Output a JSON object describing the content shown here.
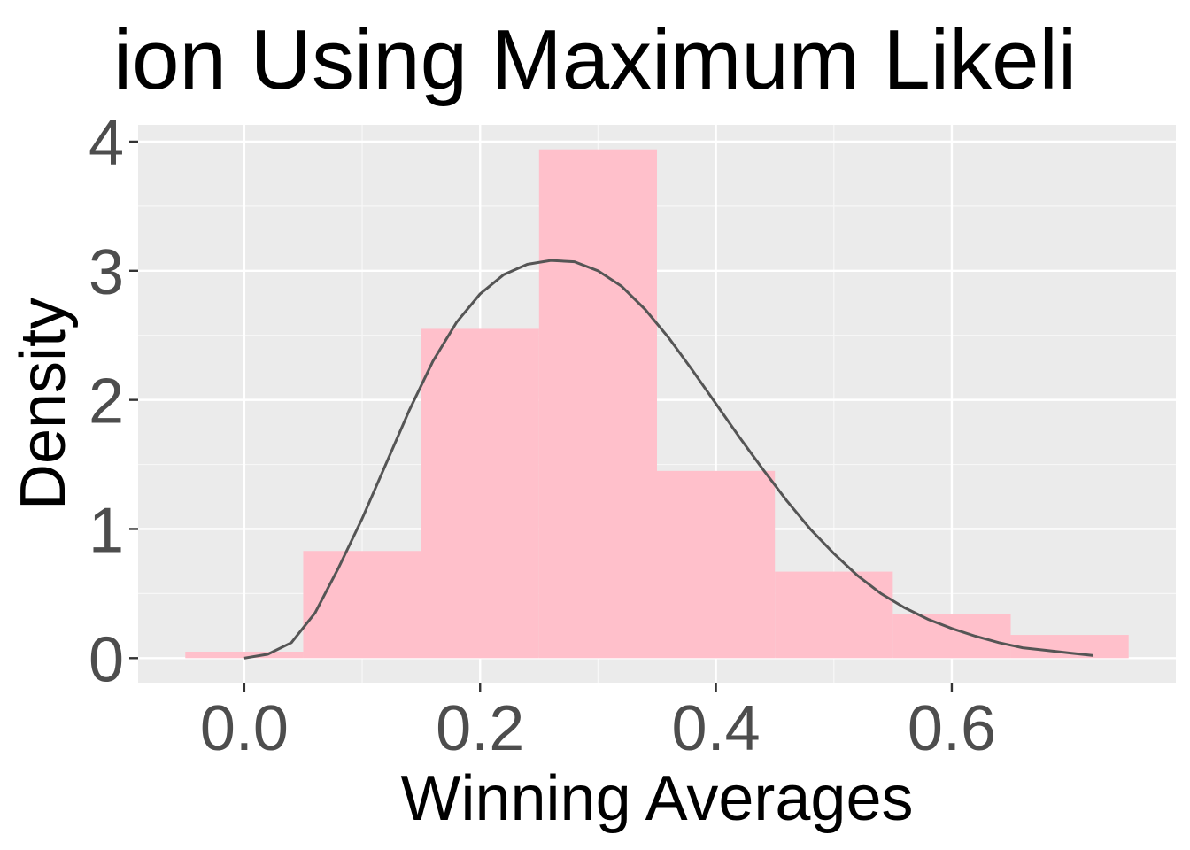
{
  "chart_data": {
    "type": "bar",
    "title": "ion Using Maximum Likeli",
    "xlabel": "Winning Averages",
    "ylabel": "Density",
    "xlim": [
      -0.09,
      0.79
    ],
    "ylim": [
      -0.19,
      4.13
    ],
    "x_ticks": [
      0.0,
      0.2,
      0.4,
      0.6
    ],
    "x_tick_labels": [
      "0.0",
      "0.2",
      "0.4",
      "0.6"
    ],
    "y_ticks": [
      0,
      1,
      2,
      3,
      4
    ],
    "y_tick_labels": [
      "0",
      "1",
      "2",
      "3",
      "4"
    ],
    "grid": true,
    "bins": [
      {
        "x0": -0.05,
        "x1": 0.05,
        "density": 0.05
      },
      {
        "x0": 0.05,
        "x1": 0.15,
        "density": 0.83
      },
      {
        "x0": 0.15,
        "x1": 0.25,
        "density": 2.55
      },
      {
        "x0": 0.25,
        "x1": 0.35,
        "density": 3.94
      },
      {
        "x0": 0.35,
        "x1": 0.45,
        "density": 1.45
      },
      {
        "x0": 0.45,
        "x1": 0.55,
        "density": 0.67
      },
      {
        "x0": 0.55,
        "x1": 0.65,
        "density": 0.34
      },
      {
        "x0": 0.65,
        "x1": 0.75,
        "density": 0.18
      }
    ],
    "density_curve": {
      "x": [
        0.0,
        0.02,
        0.04,
        0.06,
        0.08,
        0.1,
        0.12,
        0.14,
        0.16,
        0.18,
        0.2,
        0.22,
        0.24,
        0.26,
        0.28,
        0.3,
        0.32,
        0.34,
        0.36,
        0.38,
        0.4,
        0.42,
        0.44,
        0.46,
        0.48,
        0.5,
        0.52,
        0.54,
        0.56,
        0.58,
        0.6,
        0.62,
        0.64,
        0.66,
        0.68,
        0.7,
        0.72
      ],
      "y": [
        0.0,
        0.03,
        0.12,
        0.35,
        0.7,
        1.08,
        1.5,
        1.92,
        2.3,
        2.6,
        2.82,
        2.97,
        3.05,
        3.08,
        3.07,
        3.0,
        2.88,
        2.7,
        2.48,
        2.23,
        1.97,
        1.71,
        1.46,
        1.22,
        1.0,
        0.81,
        0.64,
        0.5,
        0.39,
        0.3,
        0.23,
        0.17,
        0.12,
        0.08,
        0.06,
        0.04,
        0.02
      ]
    },
    "colors": {
      "panel_background": "#ebebeb",
      "grid_major": "#ffffff",
      "grid_minor": "#f7f7f7",
      "bar_fill": "#ffc0cb",
      "curve": "#555555",
      "tick_mark": "#333333"
    }
  }
}
